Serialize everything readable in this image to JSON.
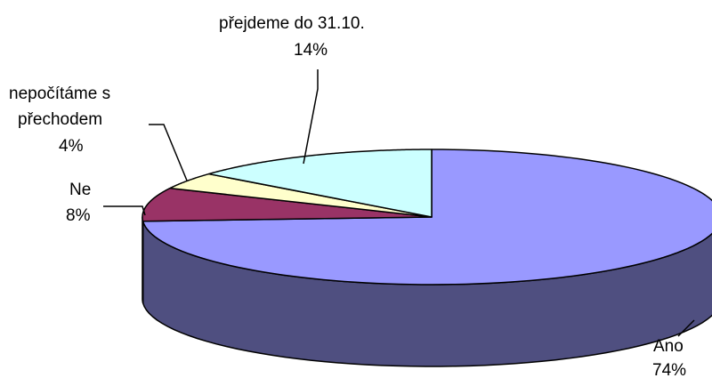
{
  "chart_data": {
    "type": "pie",
    "title": "",
    "three_d": true,
    "legend": "none",
    "slices": [
      {
        "label": "Ano",
        "value": 74,
        "value_label": "74%",
        "color": "#9999ff",
        "side_color": "#4f4f80"
      },
      {
        "label": "Ne",
        "value": 8,
        "value_label": "8%",
        "color": "#993366",
        "side_color": "#6a2447"
      },
      {
        "label": "nepočítáme s přechodem",
        "label_lines": [
          "nepočítáme s",
          "přechodem"
        ],
        "value": 4,
        "value_label": "4%",
        "color": "#ffffcc",
        "side_color": "#b3b38f"
      },
      {
        "label": "přejdeme do 31.10.",
        "value": 14,
        "value_label": "14%",
        "color": "#ccffff",
        "side_color": "#8fb3b3"
      }
    ]
  }
}
